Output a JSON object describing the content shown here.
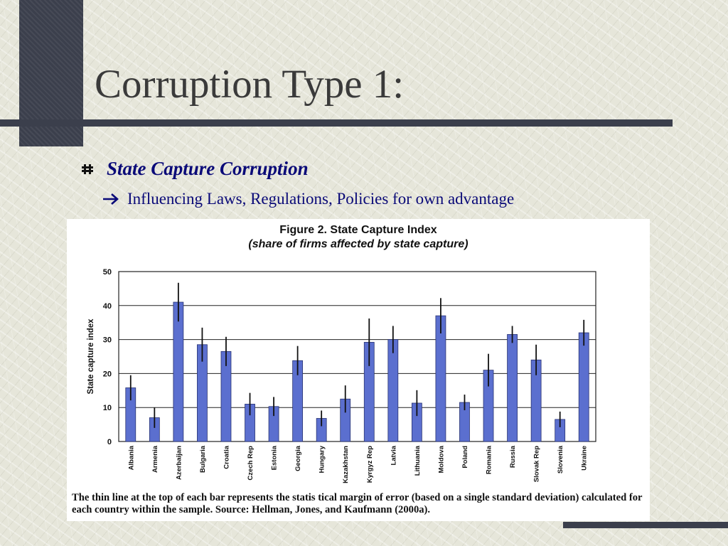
{
  "slide": {
    "title": "Corruption Type 1:",
    "bullet": "State Capture Corruption",
    "sub_bullet": "Influencing Laws, Regulations, Policies for own advantage",
    "bullet_icon": "hash-bullet-icon",
    "sub_bullet_icon": "right-arrow-icon",
    "colors": {
      "background": "#e6e6da",
      "accent_dark": "#3b3f4c",
      "title_text": "#3a3a3a",
      "bullet_text": "#0a0a78"
    }
  },
  "figure": {
    "title": "Figure 2. State Capture Index",
    "subtitle": "(share of firms affected by state capture)",
    "caption": "The thin line at the top of each bar represents the statis tical margin of error (based on a single standard deviation) calculated for each country within the sample. Source: Hellman, Jones, and Kaufmann (2000a)."
  },
  "chart_data": {
    "type": "bar",
    "ylabel": "State capture index",
    "ylim": [
      0,
      50
    ],
    "yticks": [
      0,
      10,
      20,
      30,
      40,
      50
    ],
    "grid": "horizontal",
    "bar_color": "#5b6fcf",
    "categories": [
      "Albania",
      "Armenia",
      "Azerbaijan",
      "Bulgaria",
      "Croatia",
      "Czech Rep",
      "Estonia",
      "Georgia",
      "Hungary",
      "Kazakhstan",
      "Kyrgyz Rep",
      "Latvia",
      "Lithuania",
      "Moldova",
      "Poland",
      "Romania",
      "Russia",
      "Slovak Rep",
      "Slovenia",
      "Ukraine"
    ],
    "values": [
      15.8,
      7,
      41,
      28.5,
      26.5,
      11,
      10.3,
      23.8,
      6.8,
      12.5,
      29.2,
      30,
      11.3,
      37,
      11.5,
      21,
      31.5,
      24,
      6.5,
      32
    ],
    "errors": [
      3.7,
      3,
      5.7,
      5,
      4.3,
      3.3,
      2.8,
      4.3,
      2.3,
      4,
      7,
      4,
      3.8,
      5.2,
      2.3,
      4.8,
      2.5,
      4.5,
      2.3,
      3.8
    ]
  }
}
